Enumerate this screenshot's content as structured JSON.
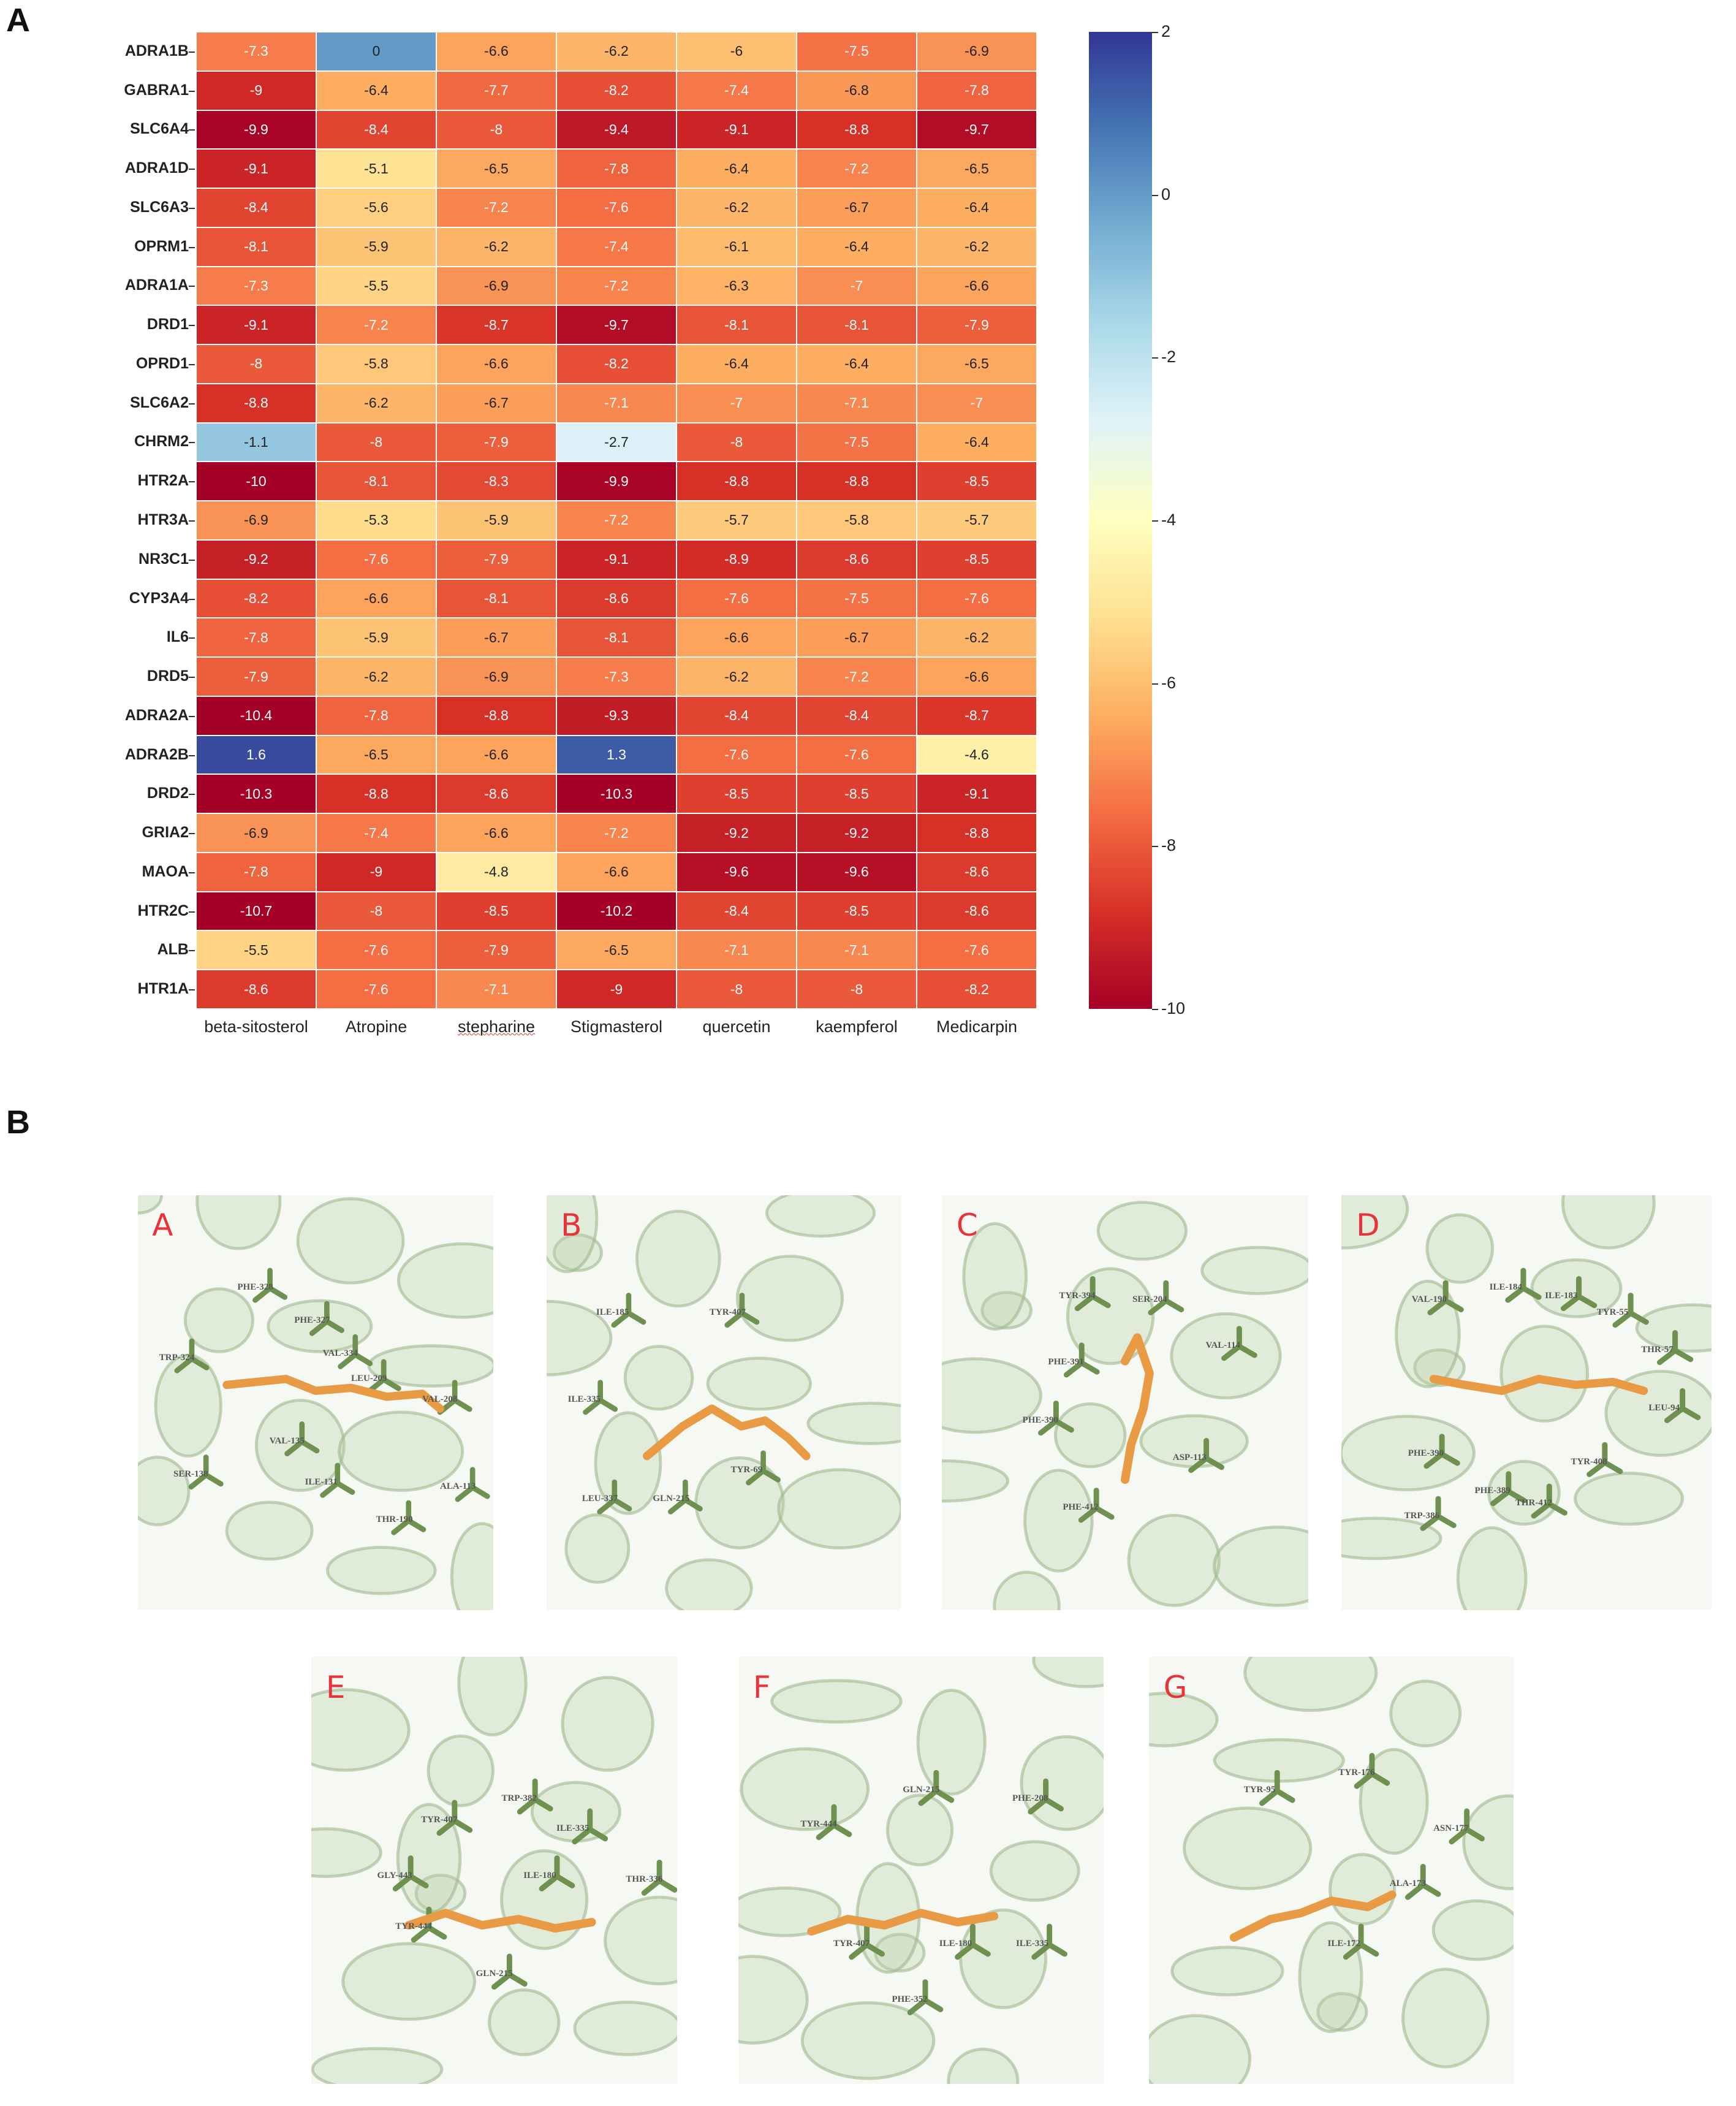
{
  "figure_labels": {
    "part_a": "A",
    "part_b": "B"
  },
  "chart_data": {
    "type": "heatmap",
    "title": "",
    "rows": [
      "ADRA1B",
      "GABRA1",
      "SLC6A4",
      "ADRA1D",
      "SLC6A3",
      "OPRM1",
      "ADRA1A",
      "DRD1",
      "OPRD1",
      "SLC6A2",
      "CHRM2",
      "HTR2A",
      "HTR3A",
      "NR3C1",
      "CYP3A4",
      "IL6",
      "DRD5",
      "ADRA2A",
      "ADRA2B",
      "DRD2",
      "GRIA2",
      "MAOA",
      "HTR2C",
      "ALB",
      "HTR1A"
    ],
    "columns": [
      "beta-sitosterol",
      "Atropine",
      "stepharine",
      "Stigmasterol",
      "quercetin",
      "kaempferol",
      "Medicarpin"
    ],
    "values": [
      [
        -7.3,
        0,
        -6.6,
        -6.2,
        -6,
        -7.5,
        -6.9
      ],
      [
        -9,
        -6.4,
        -7.7,
        -8.2,
        -7.4,
        -6.8,
        -7.8
      ],
      [
        -9.9,
        -8.4,
        -8,
        -9.4,
        -9.1,
        -8.8,
        -9.7
      ],
      [
        -9.1,
        -5.1,
        -6.5,
        -7.8,
        -6.4,
        -7.2,
        -6.5
      ],
      [
        -8.4,
        -5.6,
        -7.2,
        -7.6,
        -6.2,
        -6.7,
        -6.4
      ],
      [
        -8.1,
        -5.9,
        -6.2,
        -7.4,
        -6.1,
        -6.4,
        -6.2
      ],
      [
        -7.3,
        -5.5,
        -6.9,
        -7.2,
        -6.3,
        -7,
        -6.6
      ],
      [
        -9.1,
        -7.2,
        -8.7,
        -9.7,
        -8.1,
        -8.1,
        -7.9
      ],
      [
        -8,
        -5.8,
        -6.6,
        -8.2,
        -6.4,
        -6.4,
        -6.5
      ],
      [
        -8.8,
        -6.2,
        -6.7,
        -7.1,
        -7,
        -7.1,
        -7
      ],
      [
        -1.1,
        -8,
        -7.9,
        -2.7,
        -8,
        -7.5,
        -6.4
      ],
      [
        -10,
        -8.1,
        -8.3,
        -9.9,
        -8.8,
        -8.8,
        -8.5
      ],
      [
        -6.9,
        -5.3,
        -5.9,
        -7.2,
        -5.7,
        -5.8,
        -5.7
      ],
      [
        -9.2,
        -7.6,
        -7.9,
        -9.1,
        -8.9,
        -8.6,
        -8.5
      ],
      [
        -8.2,
        -6.6,
        -8.1,
        -8.6,
        -7.6,
        -7.5,
        -7.6
      ],
      [
        -7.8,
        -5.9,
        -6.7,
        -8.1,
        -6.6,
        -6.7,
        -6.2
      ],
      [
        -7.9,
        -6.2,
        -6.9,
        -7.3,
        -6.2,
        -7.2,
        -6.6
      ],
      [
        -10.4,
        -7.8,
        -8.8,
        -9.3,
        -8.4,
        -8.4,
        -8.7
      ],
      [
        1.6,
        -6.5,
        -6.6,
        1.3,
        -7.6,
        -7.6,
        -4.6
      ],
      [
        -10.3,
        -8.8,
        -8.6,
        -10.3,
        -8.5,
        -8.5,
        -9.1
      ],
      [
        -6.9,
        -7.4,
        -6.6,
        -7.2,
        -9.2,
        -9.2,
        -8.8
      ],
      [
        -7.8,
        -9,
        -4.8,
        -6.6,
        -9.6,
        -9.6,
        -8.6
      ],
      [
        -10.7,
        -8,
        -8.5,
        -10.2,
        -8.4,
        -8.5,
        -8.6
      ],
      [
        -5.5,
        -7.6,
        -7.9,
        -6.5,
        -7.1,
        -7.1,
        -7.6
      ],
      [
        -8.6,
        -7.6,
        -7.1,
        -9,
        -8,
        -8,
        -8.2
      ]
    ],
    "colorbar": {
      "range": [
        -10,
        2
      ],
      "colormap": "RdYlBu",
      "ticks": [
        "2",
        "0",
        "-2",
        "-4",
        "-6",
        "-8",
        "-10"
      ],
      "tick_values": [
        2,
        0,
        -2,
        -4,
        -6,
        -8,
        -10
      ]
    },
    "xlabel": "",
    "ylabel": ""
  },
  "docking": {
    "panels": [
      {
        "label": "A",
        "residues": [
          "PHE-328",
          "PHE-327",
          "TRP-324",
          "VAL-334",
          "LEU-209",
          "VAL-208",
          "VAL-135",
          "SER-138",
          "ILE-131",
          "ALA-113",
          "THR-190"
        ]
      },
      {
        "label": "B",
        "residues": [
          "ILE-185",
          "TYR-407",
          "ILE-335",
          "LEU-337",
          "GLN-215",
          "TYR-69"
        ]
      },
      {
        "label": "C",
        "residues": [
          "TYR-394",
          "SER-204",
          "VAL-114",
          "PHE-391",
          "PHE-390",
          "ASP-113",
          "PHE-412"
        ]
      },
      {
        "label": "D",
        "residues": [
          "VAL-190",
          "ILE-184",
          "ILE-183",
          "TYR-55",
          "THR-57",
          "LEU-94",
          "PHE-390",
          "TYR-408",
          "PHE-389",
          "THR-412",
          "TRP-386"
        ]
      },
      {
        "label": "E",
        "residues": [
          "TYR-407",
          "TRP-382",
          "ILE-335",
          "GLY-443",
          "ILE-180",
          "THR-336",
          "TYR-444",
          "GLN-215"
        ]
      },
      {
        "label": "F",
        "residues": [
          "GLN-215",
          "PHE-208",
          "TYR-444",
          "TYR-407",
          "ILE-180",
          "ILE-335",
          "PHE-352"
        ]
      },
      {
        "label": "G",
        "residues": [
          "TYR-95",
          "TYR-176",
          "ASN-177",
          "ALA-173",
          "ILE-172"
        ]
      }
    ]
  },
  "colors": {
    "panel_letter": "#e8333a",
    "ligand": "#e89a45",
    "residue_stick": "#6e9150",
    "ribbon": "#b9d0a8"
  }
}
